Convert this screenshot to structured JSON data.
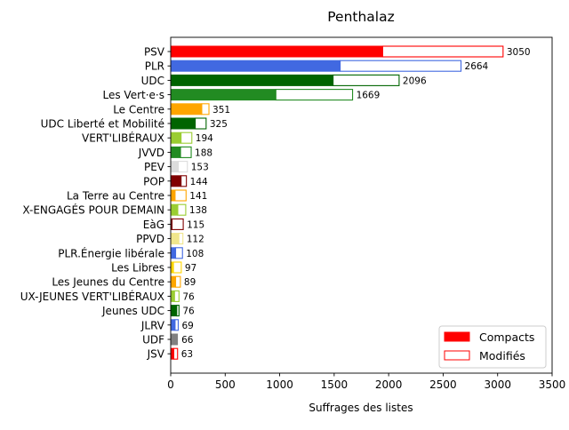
{
  "chart_data": {
    "type": "bar",
    "orientation": "horizontal",
    "stacked": true,
    "title": "Penthalaz",
    "xlabel": "Suffrages des listes",
    "ylabel": "",
    "xlim": [
      0,
      3500
    ],
    "xticks": [
      0,
      500,
      1000,
      1500,
      2000,
      2500,
      3000,
      3500
    ],
    "grid": false,
    "legend_position": "lower-right",
    "legend": [
      {
        "label": "Compacts",
        "style": "filled",
        "color": "#ff0000"
      },
      {
        "label": "Modifiés",
        "style": "outline",
        "color": "#ff0000"
      }
    ],
    "categories": [
      "PSV",
      "PLR",
      "UDC",
      "Les Vert·e·s",
      "Le Centre",
      "UDC Liberté et Mobilité",
      "VERT'LIBÉRAUX",
      "JVVD",
      "PEV",
      "POP",
      "La Terre au Centre",
      "X-ENGAGÉS POUR DEMAIN",
      "EàG",
      "PPVD",
      "PLR.Énergie libérale",
      "Les Libres",
      "Les Jeunes du Centre",
      "UX-JEUNES VERT'LIBÉRAUX",
      "Jeunes UDC",
      "JLRV",
      "UDF",
      "JSV"
    ],
    "series": [
      {
        "name": "Compacts",
        "values": [
          1945,
          1555,
          1490,
          965,
          285,
          225,
          95,
          90,
          70,
          95,
          40,
          65,
          12,
          75,
          45,
          25,
          45,
          35,
          55,
          40,
          66,
          28
        ]
      },
      {
        "name": "Modifiés",
        "values": [
          1105,
          1109,
          606,
          704,
          66,
          100,
          99,
          98,
          83,
          49,
          101,
          73,
          103,
          37,
          63,
          72,
          44,
          41,
          21,
          29,
          0,
          35
        ]
      }
    ],
    "totals": [
      3050,
      2664,
      2096,
      1669,
      351,
      325,
      194,
      188,
      153,
      144,
      141,
      138,
      115,
      112,
      108,
      97,
      89,
      76,
      76,
      69,
      66,
      63
    ],
    "colors": [
      "#ff0000",
      "#4169e1",
      "#006400",
      "#228b22",
      "#ffa500",
      "#006400",
      "#9acd32",
      "#228b22",
      "#dcdcdc",
      "#800000",
      "#ffa500",
      "#9acd32",
      "#800000",
      "#f0e68c",
      "#4169e1",
      "#ffd700",
      "#ffa500",
      "#9acd32",
      "#006400",
      "#4169e1",
      "#808080",
      "#ff0000"
    ]
  }
}
